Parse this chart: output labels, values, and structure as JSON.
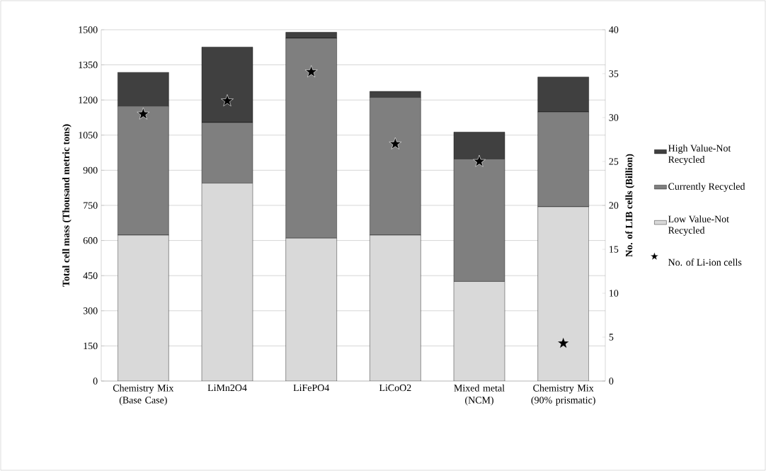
{
  "chart_data": {
    "type": "bar",
    "stacked": true,
    "categories": [
      "Chemistry Mix (Base Case)",
      "LiMn2O4",
      "LiFePO4",
      "LiCoO2",
      "Mixed metal (NCM)",
      "Chemistry Mix (90% prismatic)"
    ],
    "ylabel": "Total cell mass (Thousand metric tons)",
    "y2label": "No. of LIB cells (Billion)",
    "ylim": [
      0,
      1500
    ],
    "yticks": [
      0,
      150,
      300,
      450,
      600,
      750,
      900,
      1050,
      1200,
      1350,
      1500
    ],
    "y2lim": [
      0,
      40
    ],
    "y2ticks": [
      0,
      5,
      10,
      15,
      20,
      25,
      30,
      35,
      40
    ],
    "grid": "y",
    "legend": "right",
    "series": [
      {
        "name": "Low Value-Not Recycled",
        "color": "#d9d9d9",
        "values": [
          623,
          845,
          610,
          623,
          425,
          744
        ]
      },
      {
        "name": "Currently Recycled",
        "color": "#7f7f7f",
        "values": [
          551,
          259,
          854,
          588,
          523,
          405
        ]
      },
      {
        "name": "High Value-Not Recycled",
        "color": "#404040",
        "values": [
          144,
          322,
          25,
          26,
          115,
          149
        ]
      },
      {
        "name": "No. of Li-ion cells",
        "type": "scatter",
        "axis": "y2",
        "marker": "star",
        "color": "#000000",
        "values": [
          30.4,
          31.9,
          35.2,
          27.0,
          25.0,
          4.3
        ]
      }
    ]
  }
}
